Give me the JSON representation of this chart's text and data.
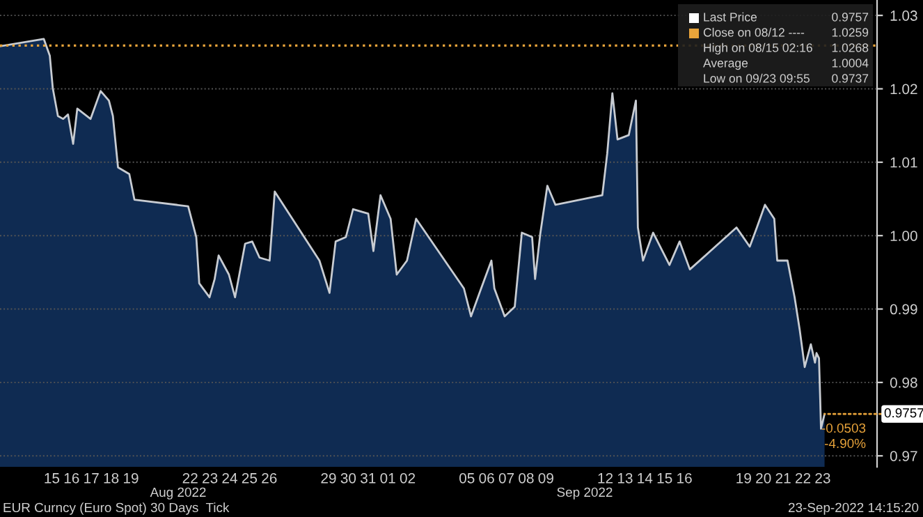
{
  "chart_data": {
    "type": "area",
    "annotations": [
      "Aug 2022",
      "Sep 2022",
      "EUR Curncy (Euro Spot) 30 Days  Tick",
      "23-Sep-2022 14:15:20",
      {
        "text": "0.9757",
        "x": "2022-09-23T14:15",
        "y": 0.9757
      },
      "-0.0503",
      "-4.90%",
      "Last Price",
      "0.9757",
      "Close on 08/12 ----",
      "1.0259",
      "High on 08/15 02:16",
      "1.0268",
      "Average",
      "1.0004",
      "Low on 09/23 09:55",
      "0.9737"
    ],
    "series": [
      {
        "color": "#c8ccd2",
        "x": [
          "2022-08-12T21:07",
          "2022-08-15T02:16",
          "2022-08-15T09:36",
          "2022-08-15T13:12",
          "2022-08-15T19:26",
          "2022-08-16T01:41",
          "2022-08-16T07:41",
          "2022-08-16T13:55",
          "2022-08-16T18:58",
          "2022-08-17T11:02",
          "2022-08-17T23:17",
          "2022-08-18T09:22",
          "2022-08-18T14:10",
          "2022-08-18T20:24",
          "2022-08-19T10:05",
          "2022-08-19T16:19",
          "2022-08-22T09:36",
          "2022-08-22T19:26",
          "2022-08-22T23:02",
          "2022-08-23T11:31",
          "2022-08-23T17:46",
          "2022-08-23T22:34",
          "2022-08-24T11:02",
          "2022-08-24T18:29",
          "2022-08-25T06:43",
          "2022-08-25T15:22",
          "2022-08-26T00:14",
          "2022-08-26T12:29",
          "2022-08-26T18:43",
          "2022-08-29T00:58",
          "2022-08-29T13:12",
          "2022-08-29T20:38",
          "2022-08-30T09:07",
          "2022-08-30T17:46",
          "2022-08-31T12:14",
          "2022-08-31T18:29",
          "2022-09-01T03:07",
          "2022-09-01T15:22",
          "2022-09-01T22:48",
          "2022-09-02T11:17",
          "2022-09-02T22:19",
          "2022-09-05T08:24",
          "2022-09-05T17:02",
          "2022-09-06T05:17",
          "2022-09-06T17:46",
          "2022-09-06T21:22",
          "2022-09-07T09:50",
          "2022-09-07T22:05",
          "2022-09-08T06:43",
          "2022-09-08T19:12",
          "2022-09-08T22:48",
          "2022-09-09T05:02",
          "2022-09-09T13:41",
          "2022-09-09T23:31",
          "2022-09-12T08:24",
          "2022-09-12T14:24",
          "2022-09-12T20:38",
          "2022-09-13T02:53",
          "2022-09-13T16:34",
          "2022-09-14T01:12",
          "2022-09-14T03:36",
          "2022-09-14T09:50",
          "2022-09-14T22:05",
          "2022-09-15T18:00",
          "2022-09-16T06:14",
          "2022-09-16T18:43",
          "2022-09-19T03:22",
          "2022-09-19T19:26",
          "2022-09-20T04:05",
          "2022-09-20T13:55",
          "2022-09-21T01:12",
          "2022-09-21T04:48",
          "2022-09-21T17:17",
          "2022-09-22T01:55",
          "2022-09-22T08:10",
          "2022-09-22T14:10",
          "2022-09-22T21:36",
          "2022-09-23T02:38",
          "2022-09-23T04:30",
          "2022-09-23T07:30",
          "2022-09-23T09:00",
          "2022-09-23T09:55",
          "2022-09-23T14:15"
        ],
        "values": [
          1.0258,
          1.0268,
          1.0245,
          1.0201,
          1.0163,
          1.0159,
          1.0165,
          1.0125,
          1.0173,
          1.0159,
          1.0197,
          1.0184,
          1.0163,
          1.0093,
          1.0084,
          1.0049,
          1.004,
          0.9998,
          0.9935,
          0.9916,
          0.9941,
          0.9973,
          0.9947,
          0.9916,
          0.9989,
          0.9992,
          0.997,
          0.9966,
          1.006,
          0.9966,
          0.9922,
          0.9992,
          0.9998,
          1.0036,
          1.003,
          0.9979,
          1.0055,
          1.0023,
          0.9947,
          0.9966,
          1.0023,
          0.9928,
          0.989,
          0.9928,
          0.9966,
          0.9928,
          0.989,
          0.9903,
          1.0004,
          0.9998,
          0.9941,
          1.0002,
          1.0068,
          1.0042,
          1.0055,
          1.0112,
          1.0194,
          1.0131,
          1.0137,
          1.0184,
          1.0011,
          0.9966,
          1.0004,
          0.996,
          0.9992,
          0.9954,
          1.0011,
          0.9985,
          1.0011,
          1.0042,
          1.0023,
          0.9966,
          0.9966,
          0.9916,
          0.9871,
          0.9821,
          0.9852,
          0.9827,
          0.984,
          0.9833,
          0.9776,
          0.9737,
          0.9757
        ]
      }
    ],
    "xlim": [
      "2022-08-12T21:07",
      "2022-09-26T06:00"
    ],
    "xticks": [
      {
        "value": "2022-08-15T12:00",
        "label": "15"
      },
      {
        "value": "2022-08-16T12:00",
        "label": "16"
      },
      {
        "value": "2022-08-17T12:00",
        "label": "17"
      },
      {
        "value": "2022-08-18T12:00",
        "label": "18"
      },
      {
        "value": "2022-08-19T12:00",
        "label": "19"
      },
      {
        "value": "2022-08-22T12:00",
        "label": "22"
      },
      {
        "value": "2022-08-23T12:00",
        "label": "23"
      },
      {
        "value": "2022-08-24T12:00",
        "label": "24"
      },
      {
        "value": "2022-08-25T12:00",
        "label": "25"
      },
      {
        "value": "2022-08-26T12:00",
        "label": "26"
      },
      {
        "value": "2022-08-29T12:00",
        "label": "29"
      },
      {
        "value": "2022-08-30T12:00",
        "label": "30"
      },
      {
        "value": "2022-08-31T12:00",
        "label": "31"
      },
      {
        "value": "2022-09-01T12:00",
        "label": "01"
      },
      {
        "value": "2022-09-02T12:00",
        "label": "02"
      },
      {
        "value": "2022-09-05T12:00",
        "label": "05"
      },
      {
        "value": "2022-09-06T12:00",
        "label": "06"
      },
      {
        "value": "2022-09-07T12:00",
        "label": "07"
      },
      {
        "value": "2022-09-08T12:00",
        "label": "08"
      },
      {
        "value": "2022-09-09T12:00",
        "label": "09"
      },
      {
        "value": "2022-09-12T12:00",
        "label": "12"
      },
      {
        "value": "2022-09-13T12:00",
        "label": "13"
      },
      {
        "value": "2022-09-14T12:00",
        "label": "14"
      },
      {
        "value": "2022-09-15T12:00",
        "label": "15"
      },
      {
        "value": "2022-09-16T12:00",
        "label": "16"
      },
      {
        "value": "2022-09-19T12:00",
        "label": "19"
      },
      {
        "value": "2022-09-20T12:00",
        "label": "20"
      },
      {
        "value": "2022-09-21T12:00",
        "label": "21"
      },
      {
        "value": "2022-09-22T12:00",
        "label": "22"
      },
      {
        "value": "2022-09-23T12:00",
        "label": "23"
      }
    ],
    "ylim": [
      0.9685,
      1.0321
    ],
    "yticks": [
      0.97,
      0.98,
      0.99,
      {
        "value": 1.0,
        "label": "1.00"
      },
      1.01,
      1.02,
      1.03
    ],
    "ref_lines": [
      {
        "axis": "y",
        "value": 1.0259,
        "color": "#e8a33a",
        "line_style": "dotted"
      }
    ],
    "grid": "y"
  }
}
